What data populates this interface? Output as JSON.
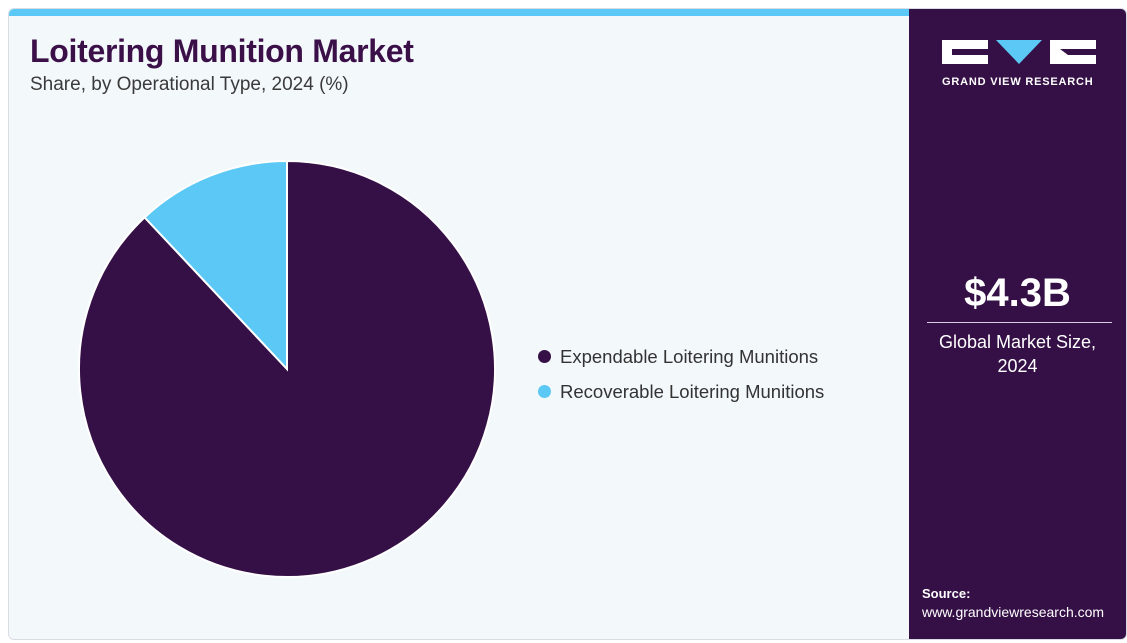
{
  "header": {
    "title": "Loitering Munition Market",
    "subtitle": "Share, by Operational Type, 2024 (%)"
  },
  "colors": {
    "expendable": "#351046",
    "recoverable": "#5bc8f5",
    "accent": "#5bc8f5",
    "sidebar_bg": "#351046"
  },
  "chart_data": {
    "type": "pie",
    "start_angle": "12 o'clock, clockwise",
    "series": [
      {
        "name": "Expendable Loitering Munitions",
        "value": 88,
        "color": "#351046"
      },
      {
        "name": "Recoverable Loitering Munitions",
        "value": 12,
        "color": "#5bc8f5"
      }
    ],
    "legend_position": "right"
  },
  "sidebar": {
    "logo_text": "GRAND VIEW RESEARCH",
    "logo_icon": "gvr-logo",
    "market_size": "$4.3B",
    "market_size_label": "Global Market Size, 2024",
    "source_heading": "Source:",
    "source_url": "www.grandviewresearch.com"
  }
}
